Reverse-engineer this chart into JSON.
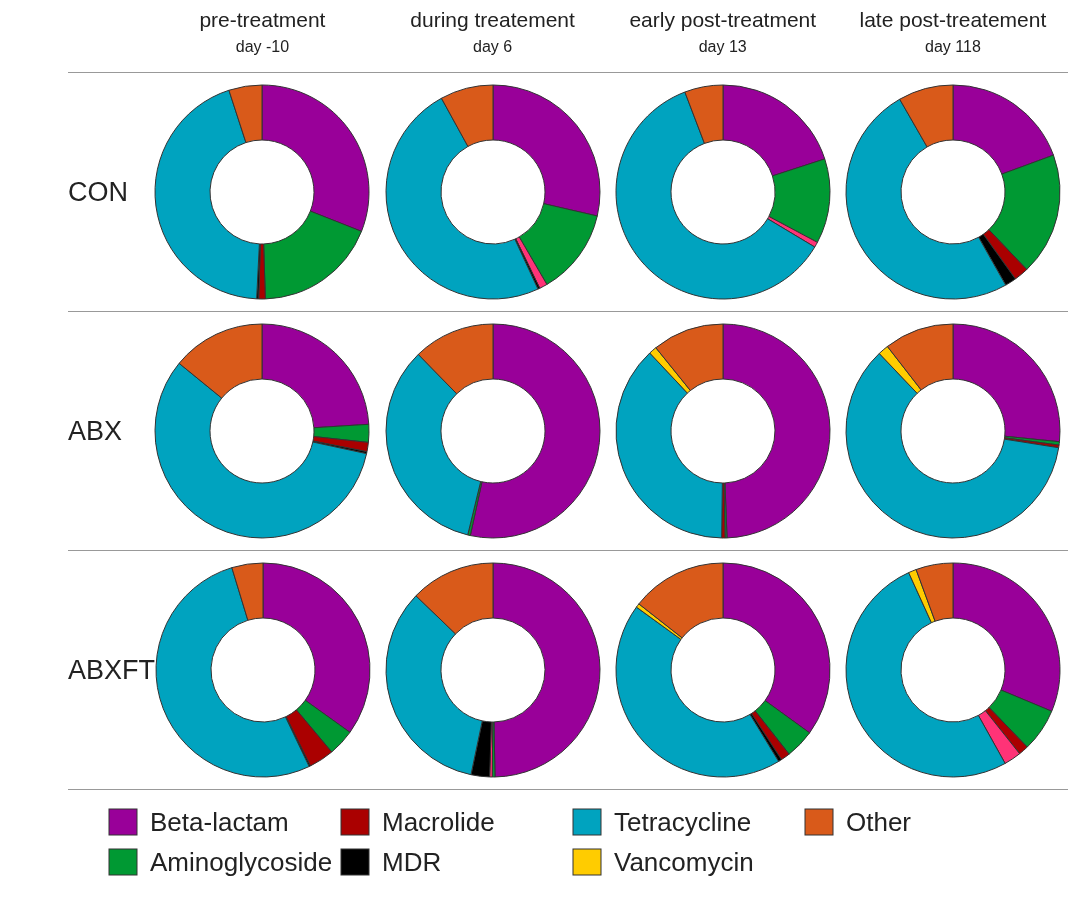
{
  "chart_data": [
    {
      "type": "donut",
      "title": "pre-treatment",
      "subtitle": "day -10",
      "ylabel": "CON",
      "legend": "bottom",
      "categories": [
        "Beta-lactam",
        "Aminoglycoside",
        "Macrolide",
        null,
        "MDR",
        "Tetracycline",
        "Vancomycin",
        "Other"
      ],
      "colors": [
        "#990099",
        "#009933",
        "#aa0000",
        "#ff3377",
        "#000000",
        "#00a3bf",
        "#ffcc00",
        "#d95a1a"
      ],
      "values": [
        31,
        18.5,
        1,
        0,
        0.3,
        44.2,
        0,
        5
      ]
    },
    {
      "type": "donut",
      "title": "during treatement",
      "subtitle": "day 6",
      "categories": [
        null,
        null,
        null,
        null,
        null,
        null,
        null,
        null
      ],
      "colors": [
        "#990099",
        "#009933",
        "#aa0000",
        "#ff3377",
        "#000000",
        "#00a3bf",
        "#ffcc00",
        "#d95a1a"
      ],
      "values": [
        28.6,
        13,
        0,
        1.2,
        0.3,
        48.9,
        0,
        8
      ]
    },
    {
      "type": "donut",
      "title": "early post-treatment",
      "subtitle": "day 13",
      "categories": [
        null,
        null,
        null,
        null,
        null,
        null,
        null,
        null
      ],
      "colors": [
        "#990099",
        "#009933",
        "#aa0000",
        "#ff3377",
        "#000000",
        "#00a3bf",
        "#ffcc00",
        "#d95a1a"
      ],
      "values": [
        20,
        12.8,
        0,
        0.8,
        0,
        60.6,
        0,
        5.8
      ]
    },
    {
      "type": "donut",
      "title": "late post-treatement",
      "subtitle": "day 118",
      "categories": [
        null,
        null,
        null,
        null,
        null,
        null,
        null,
        null
      ],
      "colors": [
        "#990099",
        "#009933",
        "#aa0000",
        "#ff3377",
        "#000000",
        "#00a3bf",
        "#ffcc00",
        "#d95a1a"
      ],
      "values": [
        19.4,
        18.5,
        2.2,
        0,
        1.7,
        49.9,
        0,
        8.3
      ]
    },
    {
      "type": "donut",
      "ylabel": "ABX",
      "categories": [
        null,
        null,
        null,
        null,
        null,
        null,
        null,
        null
      ],
      "colors": [
        "#990099",
        "#009933",
        "#aa0000",
        "#ff3377",
        "#000000",
        "#00a3bf",
        "#ffcc00",
        "#d95a1a"
      ],
      "values": [
        24,
        2.7,
        1.4,
        0,
        0.3,
        57.5,
        0,
        14.1
      ]
    },
    {
      "type": "donut",
      "categories": [
        null,
        null,
        null,
        null,
        null,
        null,
        null,
        null
      ],
      "colors": [
        "#990099",
        "#009933",
        "#aa0000",
        "#ff3377",
        "#000000",
        "#00a3bf",
        "#ffcc00",
        "#d95a1a"
      ],
      "values": [
        53.4,
        0.4,
        0,
        0,
        0,
        33.9,
        0,
        12.3
      ]
    },
    {
      "type": "donut",
      "categories": [
        null,
        null,
        null,
        null,
        null,
        null,
        null,
        null
      ],
      "colors": [
        "#990099",
        "#009933",
        "#aa0000",
        "#ff3377",
        "#000000",
        "#00a3bf",
        "#ffcc00",
        "#d95a1a"
      ],
      "values": [
        49.4,
        0.3,
        0.5,
        0,
        0,
        37.8,
        1.2,
        10.8
      ]
    },
    {
      "type": "donut",
      "categories": [
        null,
        null,
        null,
        null,
        null,
        null,
        null,
        null
      ],
      "colors": [
        "#990099",
        "#009933",
        "#aa0000",
        "#ff3377",
        "#000000",
        "#00a3bf",
        "#ffcc00",
        "#d95a1a"
      ],
      "values": [
        26.6,
        0.5,
        0.4,
        0,
        0,
        60.4,
        1.6,
        10.5
      ]
    },
    {
      "type": "donut",
      "ylabel": "ABXFT",
      "categories": [
        null,
        null,
        null,
        null,
        null,
        null,
        null,
        null
      ],
      "colors": [
        "#990099",
        "#009933",
        "#aa0000",
        "#ff3377",
        "#000000",
        "#00a3bf",
        "#ffcc00",
        "#d95a1a"
      ],
      "values": [
        34.9,
        4,
        3.8,
        0,
        0.2,
        52.4,
        0,
        4.7
      ]
    },
    {
      "type": "donut",
      "categories": [
        null,
        null,
        null,
        null,
        null,
        null,
        null,
        null
      ],
      "colors": [
        "#990099",
        "#009933",
        "#aa0000",
        "#ff3377",
        "#000000",
        "#00a3bf",
        "#ffcc00",
        "#d95a1a"
      ],
      "values": [
        49.7,
        0.4,
        0,
        0.4,
        2.8,
        33.9,
        0,
        12.8
      ]
    },
    {
      "type": "donut",
      "categories": [
        null,
        null,
        null,
        null,
        null,
        null,
        null,
        null
      ],
      "colors": [
        "#990099",
        "#009933",
        "#aa0000",
        "#ff3377",
        "#000000",
        "#00a3bf",
        "#ffcc00",
        "#d95a1a"
      ],
      "values": [
        35,
        4.4,
        1.4,
        0,
        0.5,
        43.7,
        0.6,
        14.4
      ]
    },
    {
      "type": "donut",
      "categories": [
        null,
        null,
        null,
        null,
        null,
        null,
        null,
        null
      ],
      "colors": [
        "#990099",
        "#009933",
        "#aa0000",
        "#ff3377",
        "#000000",
        "#00a3bf",
        "#ffcc00",
        "#d95a1a"
      ],
      "values": [
        31.3,
        6.5,
        1.5,
        2.6,
        0,
        51.3,
        1.2,
        5.6
      ]
    }
  ]
}
